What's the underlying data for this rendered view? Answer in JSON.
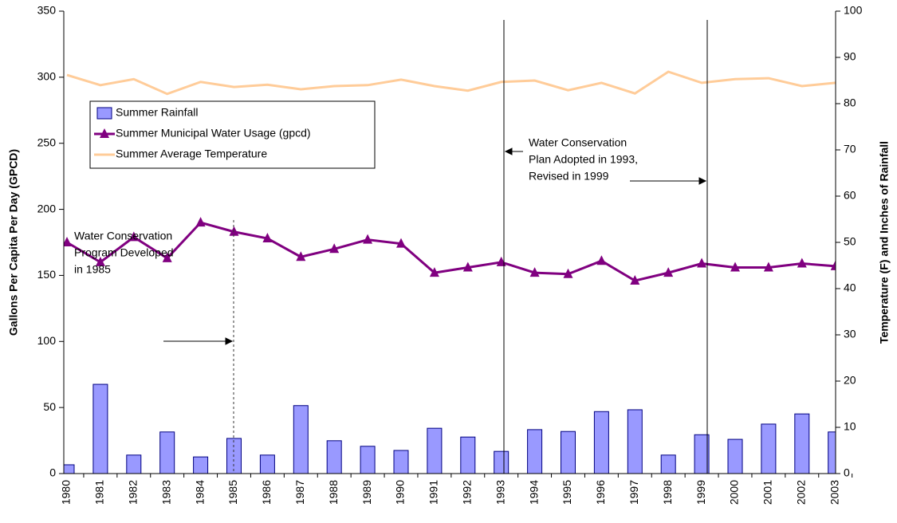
{
  "chart_data": {
    "type": "combo",
    "y_label": "Gallons Per Capita Per Day (GPCD)",
    "y2_label": "Temperature (F) and Inches of Rainfall",
    "categories": [
      "1980",
      "1981",
      "1982",
      "1983",
      "1984",
      "1985",
      "1986",
      "1987",
      "1988",
      "1989",
      "1990",
      "1991",
      "1992",
      "1993",
      "1994",
      "1995",
      "1996",
      "1997",
      "1998",
      "1999",
      "2000",
      "2001",
      "2002",
      "2003"
    ],
    "ylim": [
      0,
      350
    ],
    "yticks": [
      0,
      50,
      100,
      150,
      200,
      250,
      300,
      350
    ],
    "y2lim": [
      0,
      100
    ],
    "y2ticks": [
      0,
      10,
      20,
      30,
      40,
      50,
      60,
      70,
      80,
      90,
      100
    ],
    "legend": "upper left",
    "series": [
      {
        "name": "Summer Rainfall",
        "type": "bar",
        "axis": "y2",
        "color": "#9999ff",
        "values": [
          1.9,
          19.3,
          4.0,
          9.0,
          3.6,
          7.6,
          4.0,
          14.7,
          7.1,
          5.9,
          5.0,
          9.8,
          7.9,
          4.8,
          9.5,
          9.1,
          13.4,
          13.8,
          4.0,
          8.4,
          7.4,
          10.7,
          12.9,
          9.0
        ]
      },
      {
        "name": "Summer Municipal Water Usage (gpcd)",
        "type": "line",
        "marker": "triangle",
        "color": "#800080",
        "values": [
          175,
          160,
          179,
          163,
          190,
          183,
          178,
          164,
          170,
          177,
          174,
          152,
          156,
          160,
          152,
          151,
          161,
          146,
          152,
          159,
          156,
          156,
          159,
          157
        ]
      },
      {
        "name": "Summer Average Temperature",
        "type": "line",
        "axis": "y2",
        "color": "#ffcc99",
        "values": [
          86.2,
          84.0,
          85.3,
          82.1,
          84.7,
          83.6,
          84.1,
          83.1,
          83.8,
          84.0,
          85.2,
          83.8,
          82.8,
          84.7,
          85.0,
          82.9,
          84.5,
          82.2,
          86.9,
          84.5,
          85.3,
          85.5,
          83.8,
          84.5
        ]
      }
    ],
    "annotations": [
      {
        "lines": [
          "Water Conservation",
          "Program Developed",
          "in 1985"
        ]
      },
      {
        "lines": [
          "Water Conservation",
          "Plan Adopted in 1993,",
          "Revised in 1999"
        ]
      }
    ]
  }
}
